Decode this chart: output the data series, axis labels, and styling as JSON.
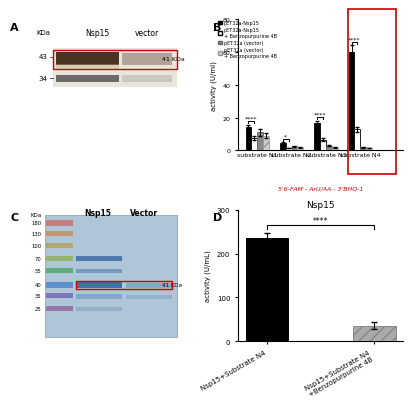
{
  "panel_B": {
    "groups": [
      "substrate N1",
      "substrate N2",
      "substrate N3",
      "substrate N4"
    ],
    "bar_colors": [
      "#000000",
      "#ffffff",
      "#888888",
      "#cccccc"
    ],
    "bar_edge_colors": [
      "#000000",
      "#000000",
      "#666666",
      "#999999"
    ],
    "ylabel": "activity (U/ml)",
    "ylim": [
      0,
      80
    ],
    "yticks": [
      0,
      20,
      40,
      60,
      80
    ],
    "values": {
      "N1": [
        14.0,
        7.5,
        11.0,
        9.0
      ],
      "N2": [
        4.5,
        1.5,
        2.5,
        2.0
      ],
      "N3": [
        17.0,
        6.5,
        3.0,
        2.0
      ],
      "N4": [
        60.0,
        13.0,
        2.0,
        1.5
      ]
    },
    "errors": {
      "N1": [
        1.5,
        1.0,
        2.0,
        1.5
      ],
      "N2": [
        0.6,
        0.3,
        0.4,
        0.3
      ],
      "N3": [
        1.2,
        0.8,
        0.5,
        0.4
      ],
      "N4": [
        4.0,
        1.5,
        0.4,
        0.3
      ]
    },
    "sig_labels": [
      "****",
      "*",
      "****",
      "****"
    ],
    "substrate_label": "5'6-FAM - ArU/AA - 3'BHQ-1",
    "legend_labels": [
      "pET32a-Nsp15",
      "pET32a-Nsp15\n+ Benzopurpurine 4B",
      "pET32a (vector)",
      "pET32a (vector)\n+ Benzopurpurine 4B"
    ]
  },
  "panel_D": {
    "categories": [
      "Nsp15+Substrate N4",
      "Nsp15+Substrate N4\n+Benzopurpurine 4B"
    ],
    "values": [
      235.0,
      35.0
    ],
    "errors": [
      12.0,
      8.0
    ],
    "bar_colors": [
      "#000000",
      "#aaaaaa"
    ],
    "bar_edge_colors": [
      "#000000",
      "#888888"
    ],
    "ylabel": "activity (U/mL)",
    "ylim": [
      0,
      300
    ],
    "yticks": [
      0,
      100,
      200,
      300
    ],
    "title": "Nsp15",
    "significance": "****"
  },
  "panel_A": {
    "kda_labels": [
      "43",
      "34"
    ],
    "col_labels": [
      "Nsp15",
      "vector"
    ],
    "band_label": "41 KDa"
  },
  "panel_C": {
    "kda_labels": [
      "180",
      "130",
      "100",
      "70",
      "55",
      "40",
      "35",
      "25"
    ],
    "col_labels": [
      "Nsp15",
      "Vector"
    ],
    "band_label": "41 KDa",
    "gel_color": "#aec6d8",
    "ladder_colors": [
      "#c87070",
      "#c89060",
      "#b8a060",
      "#90b060",
      "#50a870",
      "#5088c8",
      "#7868b8",
      "#9068a0"
    ]
  }
}
